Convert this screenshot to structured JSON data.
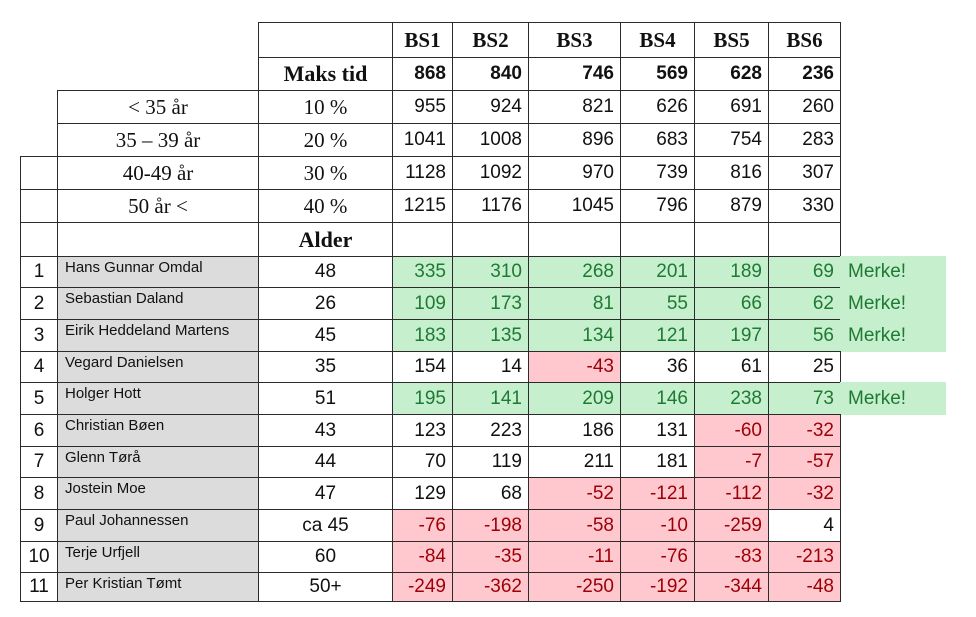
{
  "columns": [
    "BS1",
    "BS2",
    "BS3",
    "BS4",
    "BS5",
    "BS6"
  ],
  "maks_tid": {
    "label": "Maks tid",
    "values": [
      "868",
      "840",
      "746",
      "569",
      "628",
      "236"
    ]
  },
  "brackets": [
    {
      "age": "< 35 år",
      "pct": "10 %",
      "values": [
        "955",
        "924",
        "821",
        "626",
        "691",
        "260"
      ]
    },
    {
      "age": "35 – 39 år",
      "pct": "20 %",
      "values": [
        "1041",
        "1008",
        "896",
        "683",
        "754",
        "283"
      ]
    },
    {
      "age": "40-49 år",
      "pct": "30 %",
      "values": [
        "1128",
        "1092",
        "970",
        "739",
        "816",
        "307"
      ]
    },
    {
      "age": "50 år <",
      "pct": "40 %",
      "values": [
        "1215",
        "1176",
        "1045",
        "796",
        "879",
        "330"
      ]
    }
  ],
  "alder_label": "Alder",
  "participants": [
    {
      "n": "1",
      "name": "Hans Gunnar Omdal",
      "age": "48",
      "values": [
        "335",
        "310",
        "268",
        "201",
        "189",
        "69"
      ],
      "status": [
        "pos",
        "pos",
        "pos",
        "pos",
        "pos",
        "pos"
      ],
      "merke": "Merke!"
    },
    {
      "n": "2",
      "name": "Sebastian Daland",
      "age": "26",
      "values": [
        "109",
        "173",
        "81",
        "55",
        "66",
        "62"
      ],
      "status": [
        "pos",
        "pos",
        "pos",
        "pos",
        "pos",
        "pos"
      ],
      "merke": "Merke!"
    },
    {
      "n": "3",
      "name": "Eirik Heddeland Martens",
      "age": "45",
      "values": [
        "183",
        "135",
        "134",
        "121",
        "197",
        "56"
      ],
      "status": [
        "pos",
        "pos",
        "pos",
        "pos",
        "pos",
        "pos"
      ],
      "merke": "Merke!"
    },
    {
      "n": "4",
      "name": "Vegard Danielsen",
      "age": "35",
      "values": [
        "154",
        "14",
        "-43",
        "36",
        "61",
        "25"
      ],
      "status": [
        "",
        "",
        "neg",
        "",
        "",
        ""
      ],
      "merke": ""
    },
    {
      "n": "5",
      "name": "Holger Hott",
      "age": "51",
      "values": [
        "195",
        "141",
        "209",
        "146",
        "238",
        "73"
      ],
      "status": [
        "pos",
        "pos",
        "pos",
        "pos",
        "pos",
        "pos"
      ],
      "merke": "Merke!"
    },
    {
      "n": "6",
      "name": "Christian Bøen",
      "age": "43",
      "values": [
        "123",
        "223",
        "186",
        "131",
        "-60",
        "-32"
      ],
      "status": [
        "",
        "",
        "",
        "",
        "neg",
        "neg"
      ],
      "merke": ""
    },
    {
      "n": "7",
      "name": "Glenn Tørå",
      "age": "44",
      "values": [
        "70",
        "119",
        "211",
        "181",
        "-7",
        "-57"
      ],
      "status": [
        "",
        "",
        "",
        "",
        "neg",
        "neg"
      ],
      "merke": ""
    },
    {
      "n": "8",
      "name": "Jostein Moe",
      "age": "47",
      "values": [
        "129",
        "68",
        "-52",
        "-121",
        "-112",
        "-32"
      ],
      "status": [
        "",
        "",
        "neg",
        "neg",
        "neg",
        "neg"
      ],
      "merke": ""
    },
    {
      "n": "9",
      "name": "Paul Johannessen",
      "age": "ca 45",
      "values": [
        "-76",
        "-198",
        "-58",
        "-10",
        "-259",
        "4"
      ],
      "status": [
        "neg",
        "neg",
        "neg",
        "neg",
        "neg",
        ""
      ],
      "merke": ""
    },
    {
      "n": "10",
      "name": "Terje Urfjell",
      "age": "60",
      "values": [
        "-84",
        "-35",
        "-11",
        "-76",
        "-83",
        "-213"
      ],
      "status": [
        "neg",
        "neg",
        "neg",
        "neg",
        "neg",
        "neg"
      ],
      "merke": ""
    },
    {
      "n": "11",
      "name": "Per Kristian Tømt",
      "age": "50+",
      "values": [
        "-249",
        "-362",
        "-250",
        "-192",
        "-344",
        "-48"
      ],
      "status": [
        "neg",
        "neg",
        "neg",
        "neg",
        "neg",
        "neg"
      ],
      "merke": ""
    }
  ]
}
